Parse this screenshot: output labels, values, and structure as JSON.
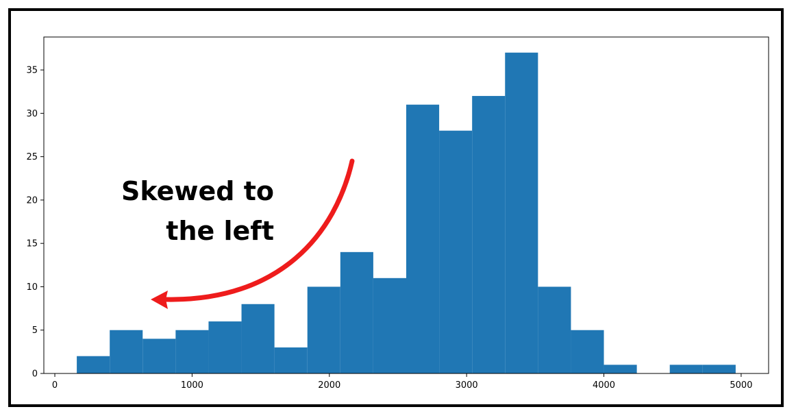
{
  "chart_data": {
    "type": "bar",
    "subtype": "histogram",
    "bins": [
      {
        "x0": 160,
        "x1": 400,
        "count": 2
      },
      {
        "x0": 400,
        "x1": 640,
        "count": 5
      },
      {
        "x0": 640,
        "x1": 880,
        "count": 4
      },
      {
        "x0": 880,
        "x1": 1120,
        "count": 5
      },
      {
        "x0": 1120,
        "x1": 1360,
        "count": 6
      },
      {
        "x0": 1360,
        "x1": 1600,
        "count": 8
      },
      {
        "x0": 1600,
        "x1": 1840,
        "count": 3
      },
      {
        "x0": 1840,
        "x1": 2080,
        "count": 10
      },
      {
        "x0": 2080,
        "x1": 2320,
        "count": 14
      },
      {
        "x0": 2320,
        "x1": 2560,
        "count": 11
      },
      {
        "x0": 2560,
        "x1": 2800,
        "count": 31
      },
      {
        "x0": 2800,
        "x1": 3040,
        "count": 28
      },
      {
        "x0": 3040,
        "x1": 3280,
        "count": 32
      },
      {
        "x0": 3280,
        "x1": 3520,
        "count": 37
      },
      {
        "x0": 3520,
        "x1": 3760,
        "count": 10
      },
      {
        "x0": 3760,
        "x1": 4000,
        "count": 5
      },
      {
        "x0": 4000,
        "x1": 4240,
        "count": 1
      },
      {
        "x0": 4240,
        "x1": 4480,
        "count": 0
      },
      {
        "x0": 4480,
        "x1": 4720,
        "count": 1
      },
      {
        "x0": 4720,
        "x1": 4960,
        "count": 1
      }
    ],
    "xlim": [
      -80,
      5200
    ],
    "ylim": [
      0,
      38.8
    ],
    "xticks": [
      0,
      1000,
      2000,
      3000,
      4000,
      5000
    ],
    "yticks": [
      0,
      5,
      10,
      15,
      20,
      25,
      30,
      35
    ],
    "bar_color": "#2077b4",
    "title": "",
    "xlabel": "",
    "ylabel": "",
    "grid": false,
    "annotation": {
      "lines": [
        "Skewed to",
        "the left"
      ],
      "arrow_color": "#ee1c1c"
    }
  }
}
